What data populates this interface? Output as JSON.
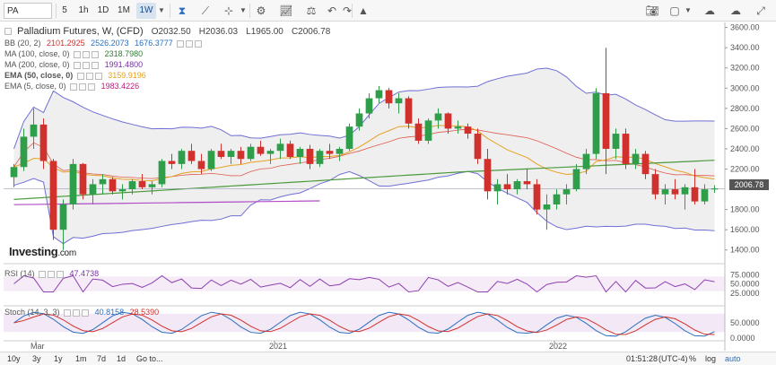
{
  "toolbar": {
    "symbol": "PA",
    "timeframes": [
      {
        "label": "5",
        "active": false
      },
      {
        "label": "1h",
        "active": false
      },
      {
        "label": "1D",
        "active": false
      },
      {
        "label": "1M",
        "active": false
      },
      {
        "label": "1W",
        "active": true
      }
    ]
  },
  "chart": {
    "title": "Palladium Futures, W, (CFD)",
    "ohlc": {
      "open": "O2032.50",
      "high": "H2036.03",
      "low": "L1965.00",
      "close": "C2006.78"
    },
    "indicators": [
      {
        "label": "BB (20, 2)",
        "values": [
          "2101.2925",
          "2526.2073",
          "1676.3777"
        ],
        "color": "#d0312d"
      },
      {
        "label": "MA (100, close, 0)",
        "values": [
          "2318.7980"
        ],
        "color": "#2e7d32"
      },
      {
        "label": "MA (200, close, 0)",
        "values": [
          "1991.4800"
        ],
        "color": "#7b2fa8"
      },
      {
        "label": "EMA (50, close, 0)",
        "values": [
          "3159.9196"
        ],
        "color": "#e6a11f"
      },
      {
        "label": "EMA (5, close, 0)",
        "values": [
          "1983.4226"
        ],
        "color": "#c2187f"
      }
    ],
    "last_price": "2006.78",
    "price_axis": [
      "3600.00",
      "3400.00",
      "3200.00",
      "3000.00",
      "2800.00",
      "2600.00",
      "2400.00",
      "2200.00",
      "1800.00",
      "1600.00",
      "1400.00"
    ],
    "time_axis": [
      "Mar",
      "2021",
      "2022"
    ],
    "logo": "Investing",
    "logo_suffix": ".com"
  },
  "rsi": {
    "label": "RSI (14)",
    "value": "47.4738",
    "axis": [
      "75.0000",
      "50.0000",
      "25.0000"
    ]
  },
  "stoch": {
    "label": "Stoch (14, 3, 3)",
    "values": [
      "40.8158",
      "28.5390"
    ],
    "axis": [
      "50.0000",
      "0.0000"
    ]
  },
  "bottombar": {
    "ranges": [
      "10y",
      "3y",
      "1y",
      "1m",
      "7d",
      "1d",
      "Go to..."
    ],
    "time": "01:51:28",
    "timezone": "(UTC-4)",
    "scale": [
      "%",
      "log",
      "auto"
    ]
  },
  "chart_data": {
    "type": "candlestick",
    "ylim": [
      1300,
      3650
    ],
    "ohlc_weekly_approx": [
      [
        2120,
        2250,
        2020,
        2220
      ],
      [
        2220,
        2600,
        2180,
        2520
      ],
      [
        2520,
        2800,
        2400,
        2640
      ],
      [
        2640,
        2700,
        2200,
        2280
      ],
      [
        2280,
        2300,
        1500,
        1600
      ],
      [
        1600,
        1900,
        1400,
        1850
      ],
      [
        1850,
        2300,
        1800,
        2250
      ],
      [
        2250,
        2260,
        1900,
        1950
      ],
      [
        1950,
        2100,
        1850,
        2050
      ],
      [
        2050,
        2150,
        1950,
        2100
      ],
      [
        2100,
        2120,
        1950,
        1980
      ],
      [
        1980,
        2050,
        1900,
        2000
      ],
      [
        2000,
        2100,
        1950,
        2080
      ],
      [
        2080,
        2150,
        2000,
        2020
      ],
      [
        2020,
        2080,
        1950,
        2050
      ],
      [
        2050,
        2300,
        2020,
        2280
      ],
      [
        2280,
        2350,
        2200,
        2250
      ],
      [
        2250,
        2400,
        2200,
        2380
      ],
      [
        2380,
        2450,
        2250,
        2280
      ],
      [
        2280,
        2350,
        2150,
        2200
      ],
      [
        2200,
        2400,
        2180,
        2380
      ],
      [
        2380,
        2450,
        2300,
        2320
      ],
      [
        2320,
        2400,
        2250,
        2380
      ],
      [
        2380,
        2420,
        2250,
        2300
      ],
      [
        2300,
        2450,
        2280,
        2420
      ],
      [
        2420,
        2480,
        2330,
        2350
      ],
      [
        2350,
        2400,
        2250,
        2380
      ],
      [
        2380,
        2500,
        2300,
        2450
      ],
      [
        2450,
        2480,
        2300,
        2320
      ],
      [
        2320,
        2420,
        2250,
        2400
      ],
      [
        2400,
        2440,
        2200,
        2250
      ],
      [
        2250,
        2400,
        2220,
        2380
      ],
      [
        2380,
        2450,
        2300,
        2350
      ],
      [
        2350,
        2420,
        2280,
        2400
      ],
      [
        2400,
        2650,
        2380,
        2620
      ],
      [
        2620,
        2800,
        2580,
        2750
      ],
      [
        2750,
        2950,
        2700,
        2900
      ],
      [
        2900,
        3020,
        2850,
        2980
      ],
      [
        2980,
        3000,
        2800,
        2850
      ],
      [
        2850,
        2950,
        2750,
        2900
      ],
      [
        2900,
        2920,
        2600,
        2650
      ],
      [
        2650,
        2700,
        2450,
        2480
      ],
      [
        2480,
        2700,
        2450,
        2680
      ],
      [
        2680,
        2800,
        2600,
        2750
      ],
      [
        2750,
        2760,
        2550,
        2600
      ],
      [
        2600,
        2680,
        2550,
        2620
      ],
      [
        2620,
        2650,
        2500,
        2550
      ],
      [
        2550,
        2600,
        2250,
        2300
      ],
      [
        2300,
        2400,
        1900,
        1980
      ],
      [
        1980,
        2100,
        1850,
        2050
      ],
      [
        2050,
        2150,
        1950,
        2000
      ],
      [
        2000,
        2100,
        1950,
        2080
      ],
      [
        2080,
        2200,
        2000,
        2050
      ],
      [
        2050,
        2100,
        1750,
        1800
      ],
      [
        1800,
        1950,
        1600,
        1850
      ],
      [
        1850,
        2000,
        1800,
        1950
      ],
      [
        1950,
        2050,
        1850,
        2000
      ],
      [
        2000,
        2250,
        1980,
        2200
      ],
      [
        2200,
        2400,
        2150,
        2350
      ],
      [
        2350,
        3000,
        2300,
        2950
      ],
      [
        2950,
        3400,
        2150,
        2400
      ],
      [
        2400,
        2600,
        2300,
        2550
      ],
      [
        2550,
        2600,
        2200,
        2250
      ],
      [
        2250,
        2400,
        2200,
        2350
      ],
      [
        2350,
        2380,
        2100,
        2150
      ],
      [
        2150,
        2200,
        1900,
        1950
      ],
      [
        1950,
        2050,
        1850,
        2000
      ],
      [
        2000,
        2100,
        1900,
        1950
      ],
      [
        1950,
        2050,
        1800,
        2020
      ],
      [
        2020,
        2200,
        1850,
        1880
      ],
      [
        1880,
        2050,
        1850,
        2000
      ],
      [
        2000,
        2040,
        1965,
        2007
      ]
    ],
    "rsi_range": [
      0,
      100
    ],
    "stoch_range": [
      0,
      100
    ]
  }
}
